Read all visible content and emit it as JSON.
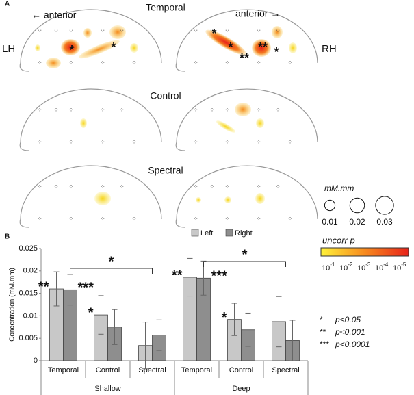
{
  "panel_a": {
    "label": "A",
    "row_titles": [
      "Temporal",
      "Control",
      "Spectral"
    ],
    "left_direction": "← anterior",
    "right_direction": "anterior →",
    "left_hemisphere": "LH",
    "right_hemisphere": "RH",
    "brain_stars": [
      "*",
      "*",
      "*",
      "*",
      "**",
      "**",
      "*"
    ],
    "size_legend": {
      "title": "mM.mm",
      "values": [
        0.01,
        0.02,
        0.03
      ]
    },
    "colorbar": {
      "title": "uncorr p",
      "ticks": [
        {
          "base": "10",
          "exponent": "-1"
        },
        {
          "base": "10",
          "exponent": "-2"
        },
        {
          "base": "10",
          "exponent": "-3"
        },
        {
          "base": "10",
          "exponent": "-4"
        },
        {
          "base": "10",
          "exponent": "-5"
        }
      ]
    }
  },
  "chart_data": {
    "type": "bar",
    "label": "B",
    "ylabel": "Concentration (mM.mm)",
    "categories": [
      "Temporal",
      "Control",
      "Spectral",
      "Temporal",
      "Control",
      "Spectral"
    ],
    "groups": [
      "Shallow",
      "Deep"
    ],
    "ylim": [
      0,
      0.025
    ],
    "yticks": [
      0,
      0.005,
      0.01,
      0.015,
      0.02,
      0.025
    ],
    "series": [
      {
        "name": "Left",
        "color": "#c8c8c8",
        "values": [
          0.016,
          0.0102,
          0.0034,
          0.0186,
          0.0092,
          0.0087
        ],
        "errors": [
          0.0038,
          0.0043,
          0.0052,
          0.0042,
          0.0036,
          0.0056
        ],
        "stars": [
          "**",
          "*",
          null,
          "**",
          "*",
          null
        ]
      },
      {
        "name": "Right",
        "color": "#8e8e8e",
        "values": [
          0.0158,
          0.0075,
          0.0057,
          0.0184,
          0.0069,
          0.0045
        ],
        "errors": [
          0.0034,
          0.0039,
          0.0034,
          0.0038,
          0.0037,
          0.0045
        ],
        "stars": [
          "***",
          null,
          null,
          "***",
          null,
          null
        ]
      }
    ],
    "brackets": [
      "*",
      "*"
    ],
    "significance_key": [
      {
        "symbol": "*",
        "text": "p<0.05"
      },
      {
        "symbol": "**",
        "text": "p<0.001"
      },
      {
        "symbol": "***",
        "text": "p<0.0001"
      }
    ]
  }
}
